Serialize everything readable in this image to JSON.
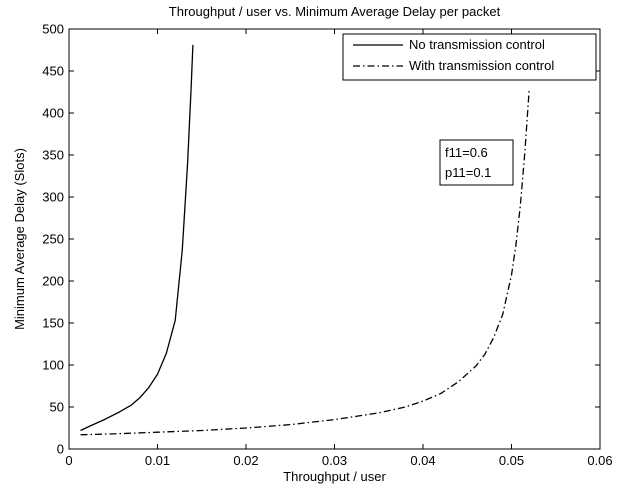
{
  "chart_data": {
    "type": "line",
    "title": "Throughput / user vs. Minimum Average Delay per packet",
    "xlabel": "Throughput / user",
    "ylabel": "Minimum Average Delay (Slots)",
    "xlim": [
      0,
      0.06
    ],
    "ylim": [
      0,
      500
    ],
    "xticks": [
      0,
      0.01,
      0.02,
      0.03,
      0.04,
      0.05,
      0.06
    ],
    "xtick_labels": [
      "0",
      "0.01",
      "0.02",
      "0.03",
      "0.04",
      "0.05",
      "0.06"
    ],
    "yticks": [
      0,
      50,
      100,
      150,
      200,
      250,
      300,
      350,
      400,
      450,
      500
    ],
    "ytick_labels": [
      "0",
      "50",
      "100",
      "150",
      "200",
      "250",
      "300",
      "350",
      "400",
      "450",
      "500"
    ],
    "grid": false,
    "legend_position": "top-right",
    "series": [
      {
        "name": "No transmission control",
        "style": "solid",
        "color": "#000000",
        "x": [
          0.0013,
          0.0025,
          0.004,
          0.0055,
          0.007,
          0.008,
          0.009,
          0.01,
          0.011,
          0.012,
          0.0128,
          0.0134,
          0.0138,
          0.014
        ],
        "y": [
          22,
          28,
          35,
          43,
          52,
          61,
          73,
          89,
          114,
          153,
          237,
          340,
          430,
          481
        ]
      },
      {
        "name": "With transmission control",
        "style": "dashdot",
        "color": "#000000",
        "x": [
          0.0013,
          0.005,
          0.01,
          0.015,
          0.02,
          0.025,
          0.03,
          0.035,
          0.038,
          0.04,
          0.042,
          0.044,
          0.046,
          0.047,
          0.048,
          0.049,
          0.05,
          0.0505,
          0.051,
          0.0515,
          0.052
        ],
        "y": [
          17,
          18,
          20,
          22,
          25,
          29,
          35,
          43,
          50,
          57,
          66,
          80,
          99,
          113,
          133,
          160,
          207,
          243,
          290,
          352,
          428
        ]
      }
    ],
    "annotation": {
      "lines": [
        "f11=0.6",
        "p11=0.1"
      ]
    }
  }
}
